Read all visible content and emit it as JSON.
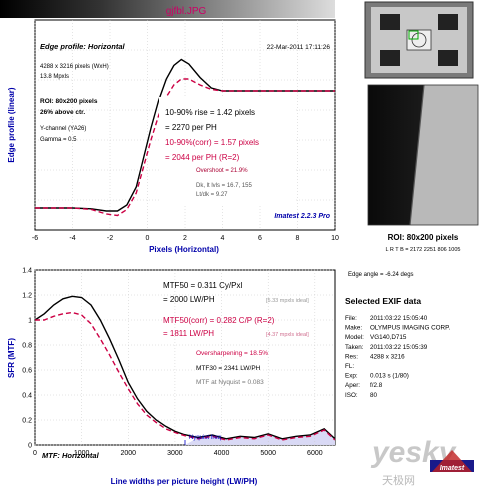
{
  "file_title": "gjfbl.JPG",
  "edge": {
    "panel_title": "Edge profile: Horizontal",
    "timestamp": "22-Mar-2011 17:11:26",
    "ylabel": "Edge profile (linear)",
    "xlabel": "Pixels (Horizontal)",
    "info_lines": [
      "4288 x 3216 pixels (WxH)",
      "13.8 Mpxls"
    ],
    "roi_lines": [
      "ROI: 80x200 pixels",
      "26% above ctr."
    ],
    "channel_lines": [
      "Y-channel  (YA26)",
      "Gamma = 0.5"
    ],
    "rise_lines": [
      "10-90% rise = 1.42 pixels",
      "= 2270 per PH"
    ],
    "corr_lines": [
      "10-90%(corr) = 1.57 pixels",
      "= 2044 per PH  (R=2)"
    ],
    "overshoot": "Overshoot = 21.9%",
    "levels_lines": [
      "Dk, lt lvls = 16.7, 155",
      "Lt/dk = 9.27"
    ],
    "brand": "Imatest 2.2.3 Pro"
  },
  "mtf": {
    "ylabel": "SFR (MTF)",
    "xlabel": "Line widths per picture height (LW/PH)",
    "panel_label": "MTF: Horizontal",
    "nyquist_label": "Nyquist freq.",
    "mtf50_lines": [
      "MTF50 = 0.311 Cy/Pxl",
      "= 2000 LW/PH"
    ],
    "mtf50_ideal": [
      "[5.33 mpxls ideal]"
    ],
    "mtf50corr_lines": [
      "MTF50(corr) = 0.282 C/P  (R=2)",
      "= 1811 LW/PH"
    ],
    "mtf50corr_ideal": [
      "[4.37 mpxls ideal]"
    ],
    "oversharpening": "Oversharpening = 18.5%",
    "mtf30": "MTF30 = 2341 LW/PH",
    "mtf_nyquist": "MTF at Nyquist = 0.083"
  },
  "roi": {
    "caption": "ROI: 80x200 pixels",
    "lrtb": "L R T B = 2172 2251  806 1005",
    "edge_angle": "Edge angle = -6.24 degs"
  },
  "exif": {
    "title": "Selected EXIF data",
    "rows": [
      {
        "k": "File:",
        "v": "2011:03:22 15:05:40"
      },
      {
        "k": "Make:",
        "v": "OLYMPUS IMAGING CORP."
      },
      {
        "k": "Model:",
        "v": "VG140,D715"
      },
      {
        "k": "Taken:",
        "v": "2011:03:22 15:05:39"
      },
      {
        "k": "Res:",
        "v": "4288 x 3216"
      },
      {
        "k": "FL:",
        "v": ""
      },
      {
        "k": "Exp:",
        "v": "0.013 s  (1/80)"
      },
      {
        "k": "Aper:",
        "v": "f/2.8"
      },
      {
        "k": "ISO:",
        "v": "80"
      }
    ]
  },
  "watermark": {
    "main": "yesky",
    "sub": "天极网",
    "badge": "Imatest"
  },
  "chart_data": [
    {
      "type": "line",
      "xlabel": "Pixels (Horizontal)",
      "ylabel": "Edge profile (linear)",
      "xlim": [
        -6,
        10
      ],
      "x_ticks": [
        -6,
        -4,
        -2,
        0,
        2,
        4,
        6,
        8,
        10
      ],
      "grid": true,
      "series": [
        {
          "color": "#000000",
          "style": "solid",
          "points": [
            [
              -6,
              0.08
            ],
            [
              -5,
              0.08
            ],
            [
              -4,
              0.08
            ],
            [
              -3,
              0.075
            ],
            [
              -2.2,
              0.06
            ],
            [
              -1.6,
              0.06
            ],
            [
              -1.1,
              0.1
            ],
            [
              -0.6,
              0.22
            ],
            [
              -0.2,
              0.42
            ],
            [
              0.2,
              0.62
            ],
            [
              0.6,
              0.8
            ],
            [
              1,
              0.94
            ],
            [
              1.4,
              1.03
            ],
            [
              1.8,
              1.07
            ],
            [
              2.2,
              1.04
            ],
            [
              2.8,
              0.95
            ],
            [
              3.4,
              0.88
            ],
            [
              4,
              0.86
            ],
            [
              5,
              0.86
            ],
            [
              6,
              0.86
            ],
            [
              7,
              0.86
            ],
            [
              8,
              0.86
            ],
            [
              9,
              0.86
            ],
            [
              10,
              0.86
            ]
          ]
        },
        {
          "color": "#cc0044",
          "style": "dashed",
          "points": [
            [
              -6,
              0.08
            ],
            [
              -5,
              0.08
            ],
            [
              -4,
              0.08
            ],
            [
              -3,
              0.07
            ],
            [
              -2.2,
              0.04
            ],
            [
              -1.6,
              0.03
            ],
            [
              -1.1,
              0.07
            ],
            [
              -0.6,
              0.18
            ],
            [
              -0.2,
              0.36
            ],
            [
              0.2,
              0.54
            ],
            [
              0.6,
              0.7
            ],
            [
              1,
              0.82
            ],
            [
              1.4,
              0.9
            ],
            [
              1.8,
              0.94
            ],
            [
              2.2,
              0.94
            ],
            [
              2.8,
              0.9
            ],
            [
              3.4,
              0.87
            ],
            [
              4,
              0.86
            ],
            [
              5,
              0.86
            ],
            [
              6,
              0.86
            ],
            [
              7,
              0.86
            ],
            [
              8,
              0.86
            ],
            [
              9,
              0.86
            ],
            [
              10,
              0.86
            ]
          ]
        }
      ]
    },
    {
      "type": "line",
      "xlabel": "Line widths per picture height (LW/PH)",
      "ylabel": "SFR (MTF)",
      "xlim": [
        0,
        6432
      ],
      "ylim": [
        0,
        1.4
      ],
      "x_ticks": [
        0,
        1000,
        2000,
        3000,
        4000,
        5000,
        6000
      ],
      "y_ticks": [
        0,
        0.2,
        0.4,
        0.6,
        0.8,
        1,
        1.2,
        1.4
      ],
      "nyquist_x": 3216,
      "grid": true,
      "series": [
        {
          "color": "#000000",
          "style": "solid",
          "x": [
            0,
            200,
            400,
            600,
            800,
            1000,
            1200,
            1400,
            1600,
            1800,
            2000,
            2200,
            2400,
            2600,
            2800,
            3000,
            3200,
            3500,
            3800,
            4100,
            4400,
            4700,
            5000,
            5300,
            5600,
            5900,
            6200,
            6432
          ],
          "values": [
            1.0,
            1.05,
            1.12,
            1.17,
            1.19,
            1.18,
            1.12,
            1.0,
            0.85,
            0.68,
            0.5,
            0.37,
            0.27,
            0.2,
            0.15,
            0.11,
            0.083,
            0.06,
            0.08,
            0.05,
            0.07,
            0.06,
            0.09,
            0.05,
            0.07,
            0.08,
            0.13,
            0.05
          ]
        },
        {
          "color": "#cc0044",
          "style": "dashed",
          "x": [
            0,
            200,
            400,
            600,
            800,
            1000,
            1200,
            1400,
            1600,
            1800,
            2000,
            2200,
            2400,
            2600,
            2800,
            3000,
            3200,
            3500,
            3800,
            4100,
            4400,
            4700,
            5000,
            5300,
            5600,
            5900,
            6200,
            6432
          ],
          "values": [
            1.0,
            1.0,
            1.03,
            1.05,
            1.06,
            1.04,
            0.97,
            0.85,
            0.72,
            0.58,
            0.45,
            0.33,
            0.24,
            0.18,
            0.13,
            0.1,
            0.075,
            0.05,
            0.07,
            0.04,
            0.06,
            0.05,
            0.08,
            0.04,
            0.06,
            0.07,
            0.12,
            0.04
          ]
        }
      ]
    }
  ]
}
